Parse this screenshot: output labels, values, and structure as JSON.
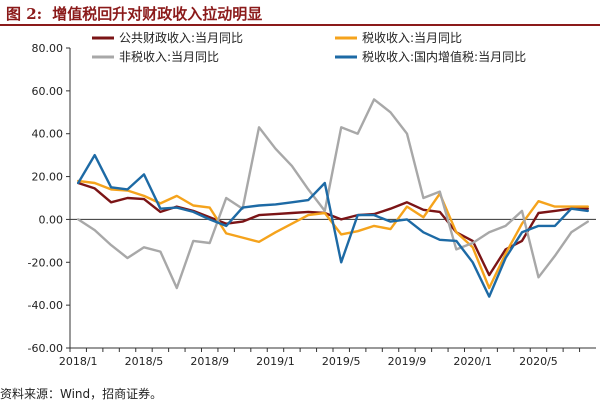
{
  "figure": {
    "label": "图 2:",
    "title": "增值税回升对财政收入拉动明显"
  },
  "source": "资料来源：Wind，招商证券。",
  "chart_data": {
    "type": "line",
    "x": [
      "2018/1",
      "2018/2",
      "2018/3",
      "2018/4",
      "2018/5",
      "2018/6",
      "2018/7",
      "2018/8",
      "2018/9",
      "2018/10",
      "2018/11",
      "2018/12",
      "2019/1",
      "2019/2",
      "2019/3",
      "2019/4",
      "2019/5",
      "2019/6",
      "2019/7",
      "2019/8",
      "2019/9",
      "2019/10",
      "2019/11",
      "2019/12",
      "2020/1",
      "2020/2",
      "2020/3",
      "2020/4",
      "2020/5",
      "2020/6",
      "2020/7",
      "2020/8"
    ],
    "x_tick_labels": [
      "2018/1",
      "2018/5",
      "2018/9",
      "2019/1",
      "2019/5",
      "2019/9",
      "2020/1",
      "2020/5"
    ],
    "ylim": [
      -60,
      80
    ],
    "y_ticks": [
      -60,
      -40,
      -20,
      0,
      20,
      40,
      60,
      80
    ],
    "y_tick_labels": [
      "-60.00",
      "-40.00",
      "-20.00",
      "0.00",
      "20.00",
      "40.00",
      "60.00",
      "80.00"
    ],
    "grid": false,
    "legend_position": "top",
    "series": [
      {
        "name": "公共财政收入:当月同比",
        "color": "#7b1416",
        "values": [
          17,
          14.5,
          8,
          10,
          9.5,
          3.5,
          6,
          4,
          1,
          -2,
          -1,
          2,
          2.5,
          3,
          3.5,
          3,
          0,
          2,
          2.5,
          5,
          8,
          4.5,
          3.5,
          -6,
          -10,
          -26,
          -14,
          -10,
          3,
          4,
          5,
          5
        ]
      },
      {
        "name": "税收收入:当月同比",
        "color": "#f5a31c",
        "values": [
          18,
          17,
          14,
          13.5,
          11,
          7.5,
          11,
          6.5,
          5.5,
          -6.5,
          -8.5,
          -10.5,
          -6,
          -2,
          2,
          3,
          -7,
          -5.5,
          -3,
          -4.5,
          6,
          1,
          12,
          -6,
          -13,
          -32,
          -16,
          -2,
          8.5,
          6,
          6,
          6
        ]
      },
      {
        "name": "非税收入:当月同比",
        "color": "#a8a8a8",
        "values": [
          0,
          -5,
          -12,
          -18,
          -13,
          -15,
          -32,
          -10,
          -11,
          10,
          5,
          43,
          33,
          25,
          14,
          4,
          43,
          40,
          56,
          50,
          40,
          10,
          13,
          -14,
          -11,
          -6,
          -3,
          4,
          -27,
          -17,
          -6,
          -1
        ]
      },
      {
        "name": "税收收入:国内增值税:当月同比",
        "color": "#1d6aa5",
        "values": [
          17,
          30,
          15,
          14,
          21,
          5,
          5.5,
          3.5,
          0,
          -3,
          5.5,
          6.5,
          7,
          8,
          9,
          17,
          -20,
          2,
          2,
          -1,
          0,
          -6,
          -9.5,
          -10,
          -20,
          -36,
          -18,
          -6,
          -3,
          -3,
          5,
          4
        ]
      }
    ]
  }
}
